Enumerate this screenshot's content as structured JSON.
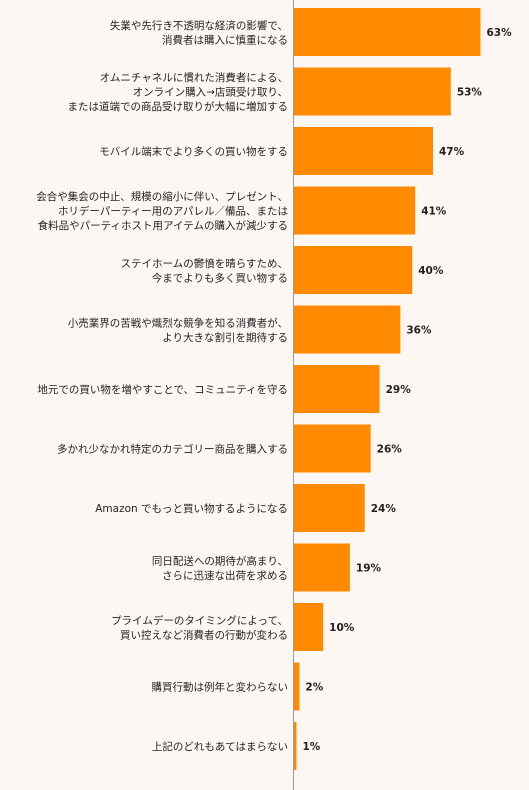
{
  "chart_data": {
    "type": "bar",
    "orientation": "horizontal",
    "bar_color": "#ff8a00",
    "axis_color": "#9a9a9a",
    "value_suffix": "%",
    "xlim": [
      0,
      63
    ],
    "categories": [
      [
        "失業や先行き不透明な経済の影響で、",
        "消費者は購入に慎重になる"
      ],
      [
        "オムニチャネルに慣れた消費者による、",
        "オンライン購入→店頭受け取り、",
        "または道端での商品受け取りが大幅に増加する"
      ],
      [
        "モバイル端末でより多くの買い物をする"
      ],
      [
        "会合や集会の中止、規模の縮小に伴い、プレゼント、",
        "ホリデーパーティー用のアパレル／備品、または",
        "食料品やパーティホスト用アイテムの購入が減少する"
      ],
      [
        "ステイホームの鬱憤を晴らすため、",
        "今までよりも多く買い物する"
      ],
      [
        "小売業界の苦戦や熾烈な競争を知る消費者が、",
        "より大きな割引を期待する"
      ],
      [
        "地元での買い物を増やすことで、コミュニティを守る"
      ],
      [
        "多かれ少なかれ特定のカテゴリー商品を購入する"
      ],
      [
        "Amazon でもっと買い物するようになる"
      ],
      [
        "同日配送への期待が高まり、",
        "さらに迅速な出荷を求める"
      ],
      [
        "プライムデーのタイミングによって、",
        "買い控えなど消費者の行動が変わる"
      ],
      [
        "購買行動は例年と変わらない"
      ],
      [
        "上記のどれもあてはまらない"
      ]
    ],
    "values": [
      63,
      53,
      47,
      41,
      40,
      36,
      29,
      26,
      24,
      19,
      10,
      2,
      1
    ]
  }
}
